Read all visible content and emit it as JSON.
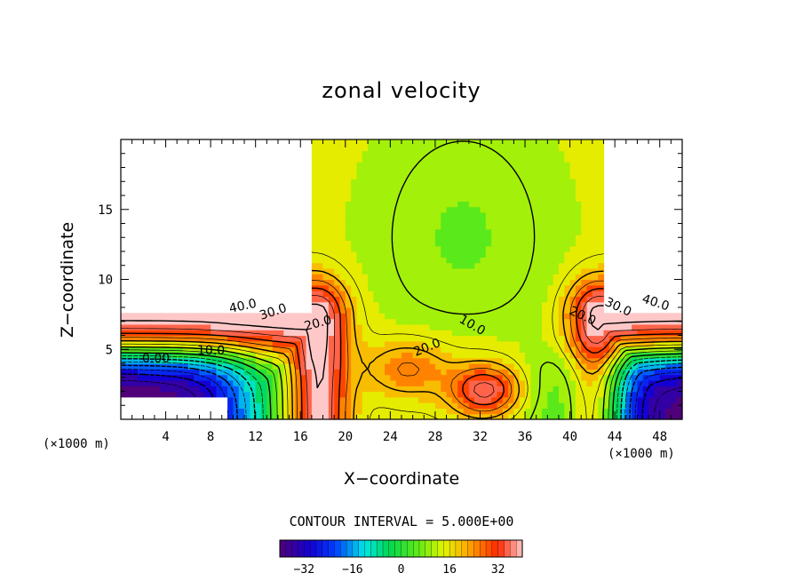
{
  "chart_data": {
    "type": "heatmap",
    "title": "zonal velocity",
    "xlabel": "X−coordinate",
    "ylabel": "Z−coordinate",
    "x_unit_label": "(×1000 m)",
    "xlim": [
      0,
      50
    ],
    "ylim": [
      0,
      20
    ],
    "x_ticks": [
      4,
      8,
      12,
      16,
      20,
      24,
      28,
      32,
      36,
      40,
      44,
      48
    ],
    "y_ticks": [
      5,
      10,
      15
    ],
    "contour_interval_text": "CONTOUR INTERVAL = 5.000E+00",
    "contour_labels": [
      "40.0",
      "30.0",
      "20.0",
      "10.0",
      "0.00",
      "10.0",
      "20.0",
      "20.0",
      "30.0",
      "40.0"
    ],
    "colorbar": {
      "range": [
        -40,
        40
      ],
      "ticks": [
        -32,
        -16,
        0,
        16,
        32
      ],
      "tick_labels": [
        "−32",
        "−16",
        "0",
        "16",
        "32"
      ]
    },
    "field_notes": "Zonal velocity is negative (blue to purple, about -40) near the bottom at both edges (x < 16, x > 40, z < 4), positive and strong (red, 40+) in an arch along x approx. 16-19 and 41-44 at upper levels and along z approx. 7-8 horizontally, yellow-green (10-20) in the center column x approx. 20-38, with a red maximum near x = 32, z = 2."
  }
}
